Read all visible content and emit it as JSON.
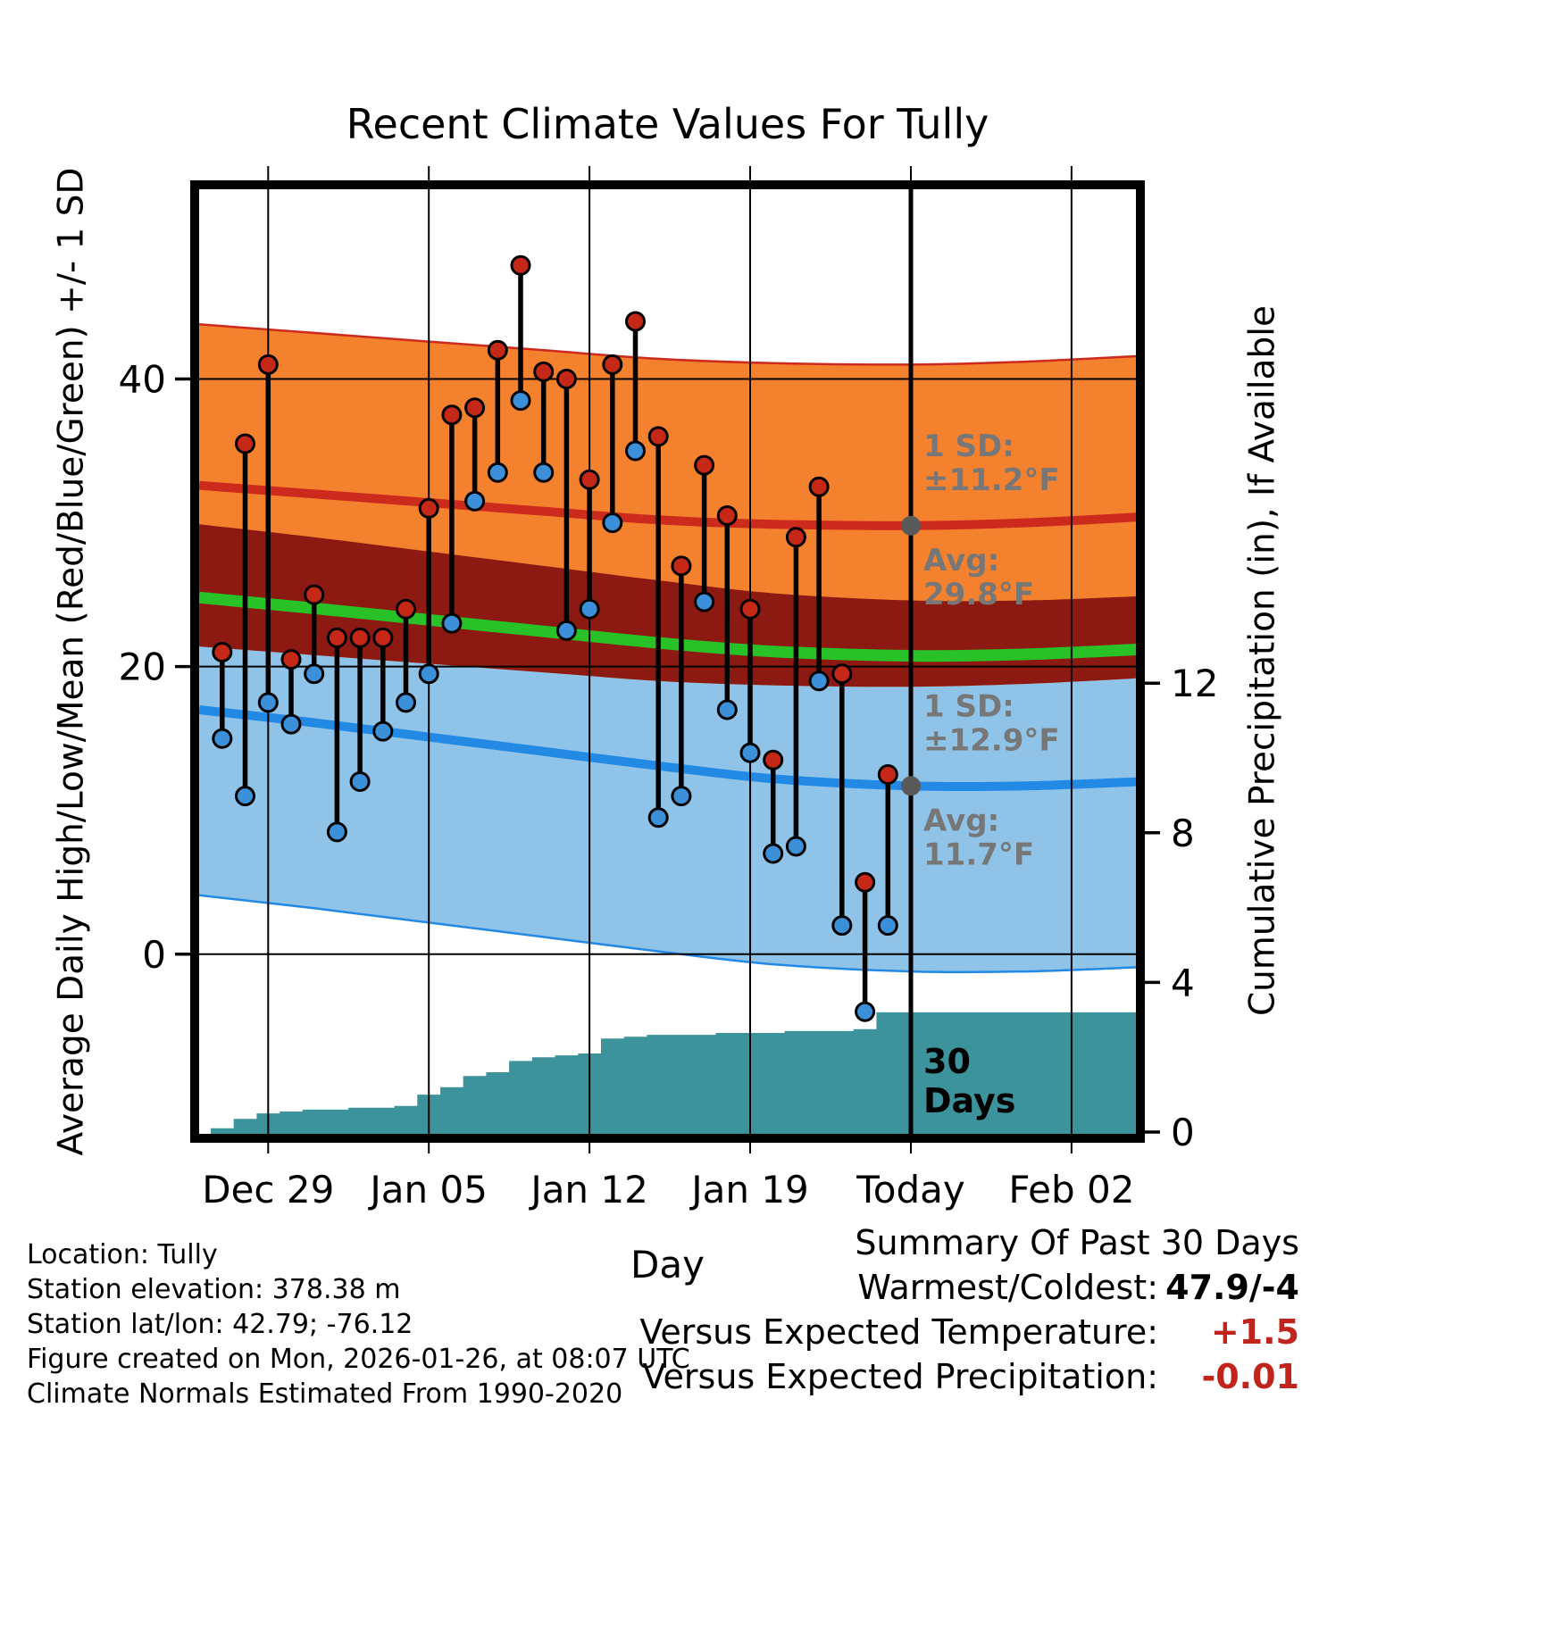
{
  "title": "Recent Climate Values For Tully",
  "figure_info": {
    "lines": [
      "Location: Tully",
      "Station elevation: 378.38 m",
      "Station lat/lon: 42.79; -76.12",
      "Figure created on Mon, 2026-01-26, at 08:07 UTC",
      "Climate Normals Estimated From 1990-2020"
    ]
  },
  "summary": {
    "title": "Summary Of Past 30 Days",
    "rows": [
      {
        "label": "Warmest/Coldest:",
        "value": "47.9/-4",
        "value_color": "#000000"
      },
      {
        "label": "Versus Expected Temperature:",
        "value": "+1.5",
        "value_color": "#c0241b"
      },
      {
        "label": "Versus Expected Precipitation:",
        "value": "-0.01",
        "value_color": "#c0241b"
      }
    ]
  },
  "chart_data": {
    "type": "line",
    "subtype": "daily-high-low-climate",
    "title": "Recent Climate Values For Tully",
    "xlabel": "Day",
    "ylabel_left": "Average Daily High/Low/Mean (Red/Blue/Green) +/- 1 SD",
    "ylabel_right": "Cumulative Precipitation (in), If Available",
    "x_range_days": [
      -0.2,
      41
    ],
    "y_left_range": [
      -12.8,
      53.5
    ],
    "x_ticks": [
      {
        "t": 3,
        "label": "Dec 29"
      },
      {
        "t": 10,
        "label": "Jan 05"
      },
      {
        "t": 17,
        "label": "Jan 12"
      },
      {
        "t": 24,
        "label": "Jan 19"
      },
      {
        "t": 31,
        "label": "Today"
      },
      {
        "t": 38,
        "label": "Feb 02"
      }
    ],
    "y_left_ticks": [
      0,
      20,
      40
    ],
    "y_right_ticks": [
      0,
      4,
      8,
      12
    ],
    "today_t": 31,
    "normals": {
      "t": [
        0,
        5,
        10,
        15,
        20,
        25,
        31,
        36,
        41
      ],
      "high_avg": [
        32.6,
        32.0,
        31.4,
        30.8,
        30.2,
        29.9,
        29.8,
        30.0,
        30.4
      ],
      "low_avg": [
        17.0,
        16.1,
        15.1,
        14.1,
        13.1,
        12.2,
        11.7,
        11.7,
        12.0
      ],
      "high_sd": 11.2,
      "low_sd": 12.9
    },
    "daily": {
      "t_start": 1,
      "first_date": "Dec 27",
      "last_date": "Jan 25",
      "high": [
        21,
        35.5,
        41,
        20.5,
        25,
        22,
        22,
        22,
        24,
        31,
        37.5,
        38,
        42,
        47.9,
        40.5,
        40,
        33,
        41,
        44,
        36,
        27,
        34,
        30.5,
        24,
        13.5,
        29,
        32.5,
        19.5,
        5,
        12.5
      ],
      "low": [
        15,
        11,
        17.5,
        16,
        19.5,
        8.5,
        12,
        15.5,
        17.5,
        19.5,
        23,
        31.5,
        33.5,
        38.5,
        33.5,
        22.5,
        24,
        30,
        35,
        9.5,
        11,
        24.5,
        17,
        14,
        7,
        7.5,
        19,
        2,
        -4,
        2
      ]
    },
    "precip_cumulative": {
      "t": [
        1,
        2,
        3,
        4,
        5,
        6,
        7,
        8,
        9,
        10,
        11,
        12,
        13,
        14,
        15,
        16,
        17,
        18,
        19,
        20,
        21,
        22,
        23,
        24,
        25,
        26,
        27,
        28,
        29,
        30,
        41
      ],
      "values": [
        0.1,
        0.35,
        0.5,
        0.55,
        0.6,
        0.6,
        0.65,
        0.65,
        0.7,
        1.0,
        1.2,
        1.5,
        1.6,
        1.9,
        2.0,
        2.05,
        2.1,
        2.5,
        2.55,
        2.6,
        2.6,
        2.6,
        2.65,
        2.65,
        2.65,
        2.7,
        2.7,
        2.7,
        2.75,
        3.2,
        3.2
      ]
    },
    "annotations": {
      "high_sd_label": [
        "1 SD:",
        "±11.2°F"
      ],
      "high_avg_label": [
        "Avg:",
        "29.8°F"
      ],
      "high_avg_value": 29.8,
      "low_sd_label": [
        "1 SD:",
        "±12.9°F"
      ],
      "low_avg_label": [
        "Avg:",
        "11.7°F"
      ],
      "low_avg_value": 11.7,
      "today_label": [
        "30",
        "Days"
      ]
    },
    "colors": {
      "orange_band": "#f4812e",
      "blue_band": "#8fc4e8",
      "overlap_band": "#8c1a12",
      "green_line": "#28c128",
      "red_line": "#cc2a1d",
      "blue_line": "#2289e5",
      "high_dot": "#c62818",
      "low_dot": "#3c8fd9",
      "precip_area": "#3d939b",
      "gray_annotation": "#777777",
      "gray_dot": "#595959",
      "grid": "#000000",
      "today_line": "#000000"
    }
  }
}
